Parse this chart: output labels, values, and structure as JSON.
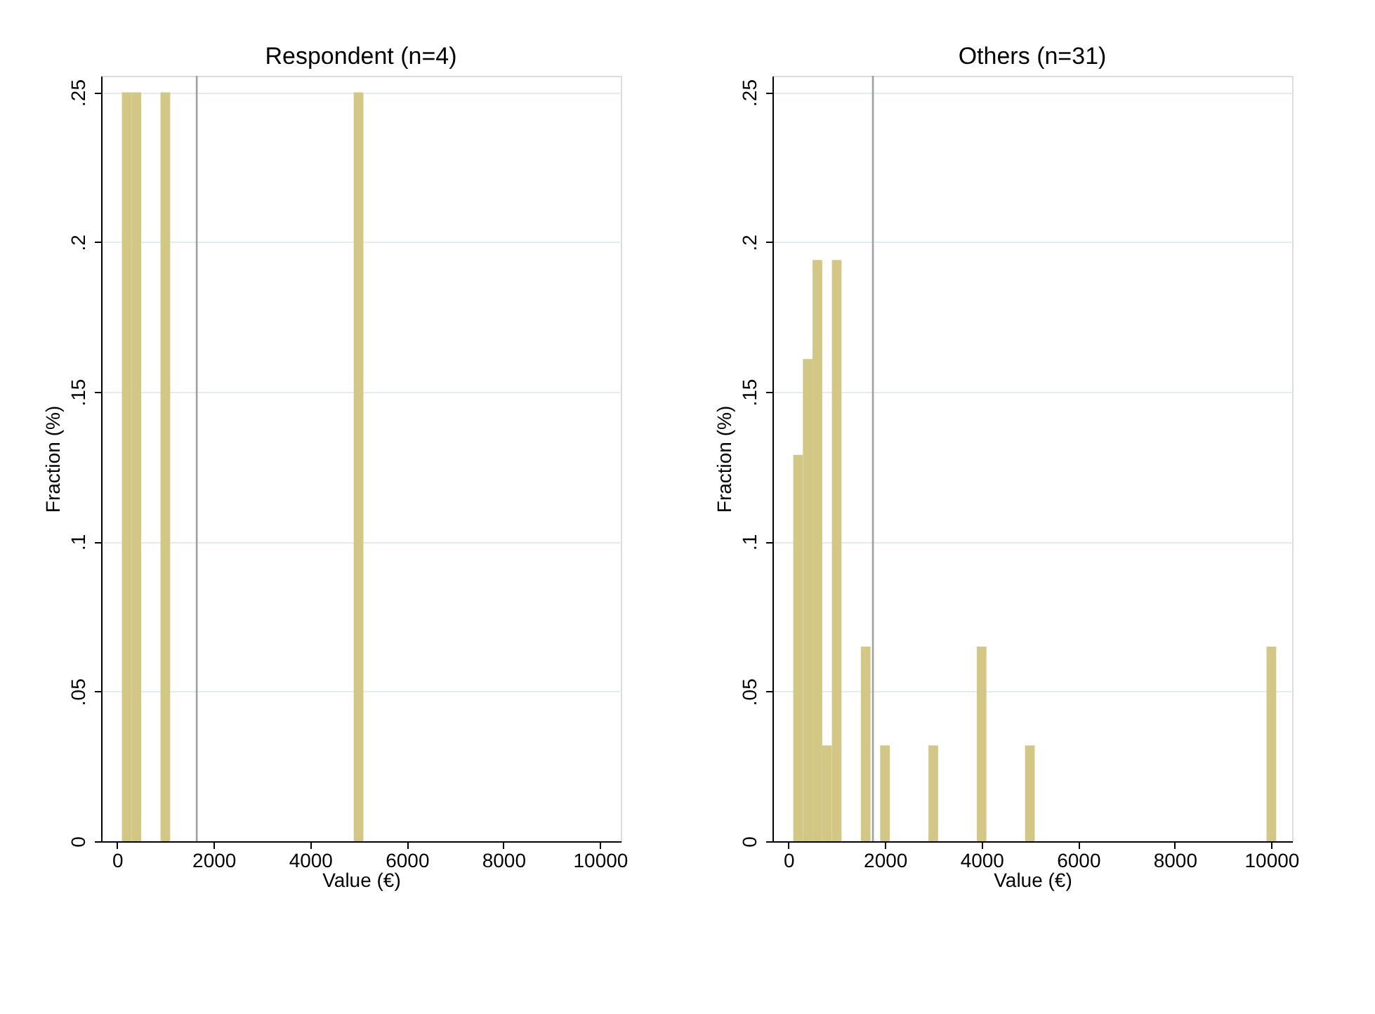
{
  "chart_data": [
    {
      "type": "histogram",
      "title": "Respondent (n=4)",
      "xlabel": "Value (€)",
      "ylabel": "Fraction (%)",
      "color": "#d2c785",
      "bins": [
        100,
        300,
        500,
        900,
        1100,
        4900,
        5100
      ],
      "values": [
        0.25,
        0.25,
        0,
        0.25,
        0,
        0.25
      ],
      "xlim": [
        -330,
        10430
      ],
      "xticks": [
        0,
        2000,
        4000,
        6000,
        8000,
        10000
      ],
      "ylim": [
        0,
        0.2555
      ],
      "yticks": [
        0,
        {
          "value": 0.05,
          "label": ".05"
        },
        {
          "value": 0.1,
          "label": ".1"
        },
        {
          "value": 0.15,
          "label": ".15"
        },
        {
          "value": 0.2,
          "label": ".2"
        },
        {
          "value": 0.25,
          "label": ".25"
        }
      ],
      "grid": "y",
      "ref_lines": [
        {
          "axis": "x",
          "value": 1650,
          "color": "#a0a0a0"
        }
      ]
    },
    {
      "type": "histogram",
      "title": "Others (n=31)",
      "xlabel": "Value (€)",
      "ylabel": "Fraction (%)",
      "color": "#d2c785",
      "bins": [
        100,
        300,
        500,
        700,
        900,
        1100,
        1500,
        1700,
        1900,
        2100,
        2900,
        3100,
        3900,
        4100,
        4900,
        5100,
        9900,
        10100
      ],
      "values": [
        0.129,
        0.161,
        0.194,
        0.032,
        0.194,
        0,
        0.065,
        0,
        0.032,
        0,
        0.032,
        0,
        0.065,
        0,
        0.032,
        0,
        0.065
      ],
      "xlim": [
        -330,
        10430
      ],
      "xticks": [
        0,
        2000,
        4000,
        6000,
        8000,
        10000
      ],
      "ylim": [
        0,
        0.2555
      ],
      "yticks": [
        0,
        {
          "value": 0.05,
          "label": ".05"
        },
        {
          "value": 0.1,
          "label": ".1"
        },
        {
          "value": 0.15,
          "label": ".15"
        },
        {
          "value": 0.2,
          "label": ".2"
        },
        {
          "value": 0.25,
          "label": ".25"
        }
      ],
      "grid": "y",
      "ref_lines": [
        {
          "axis": "x",
          "value": 1750,
          "color": "#a0a0a0"
        }
      ]
    }
  ]
}
